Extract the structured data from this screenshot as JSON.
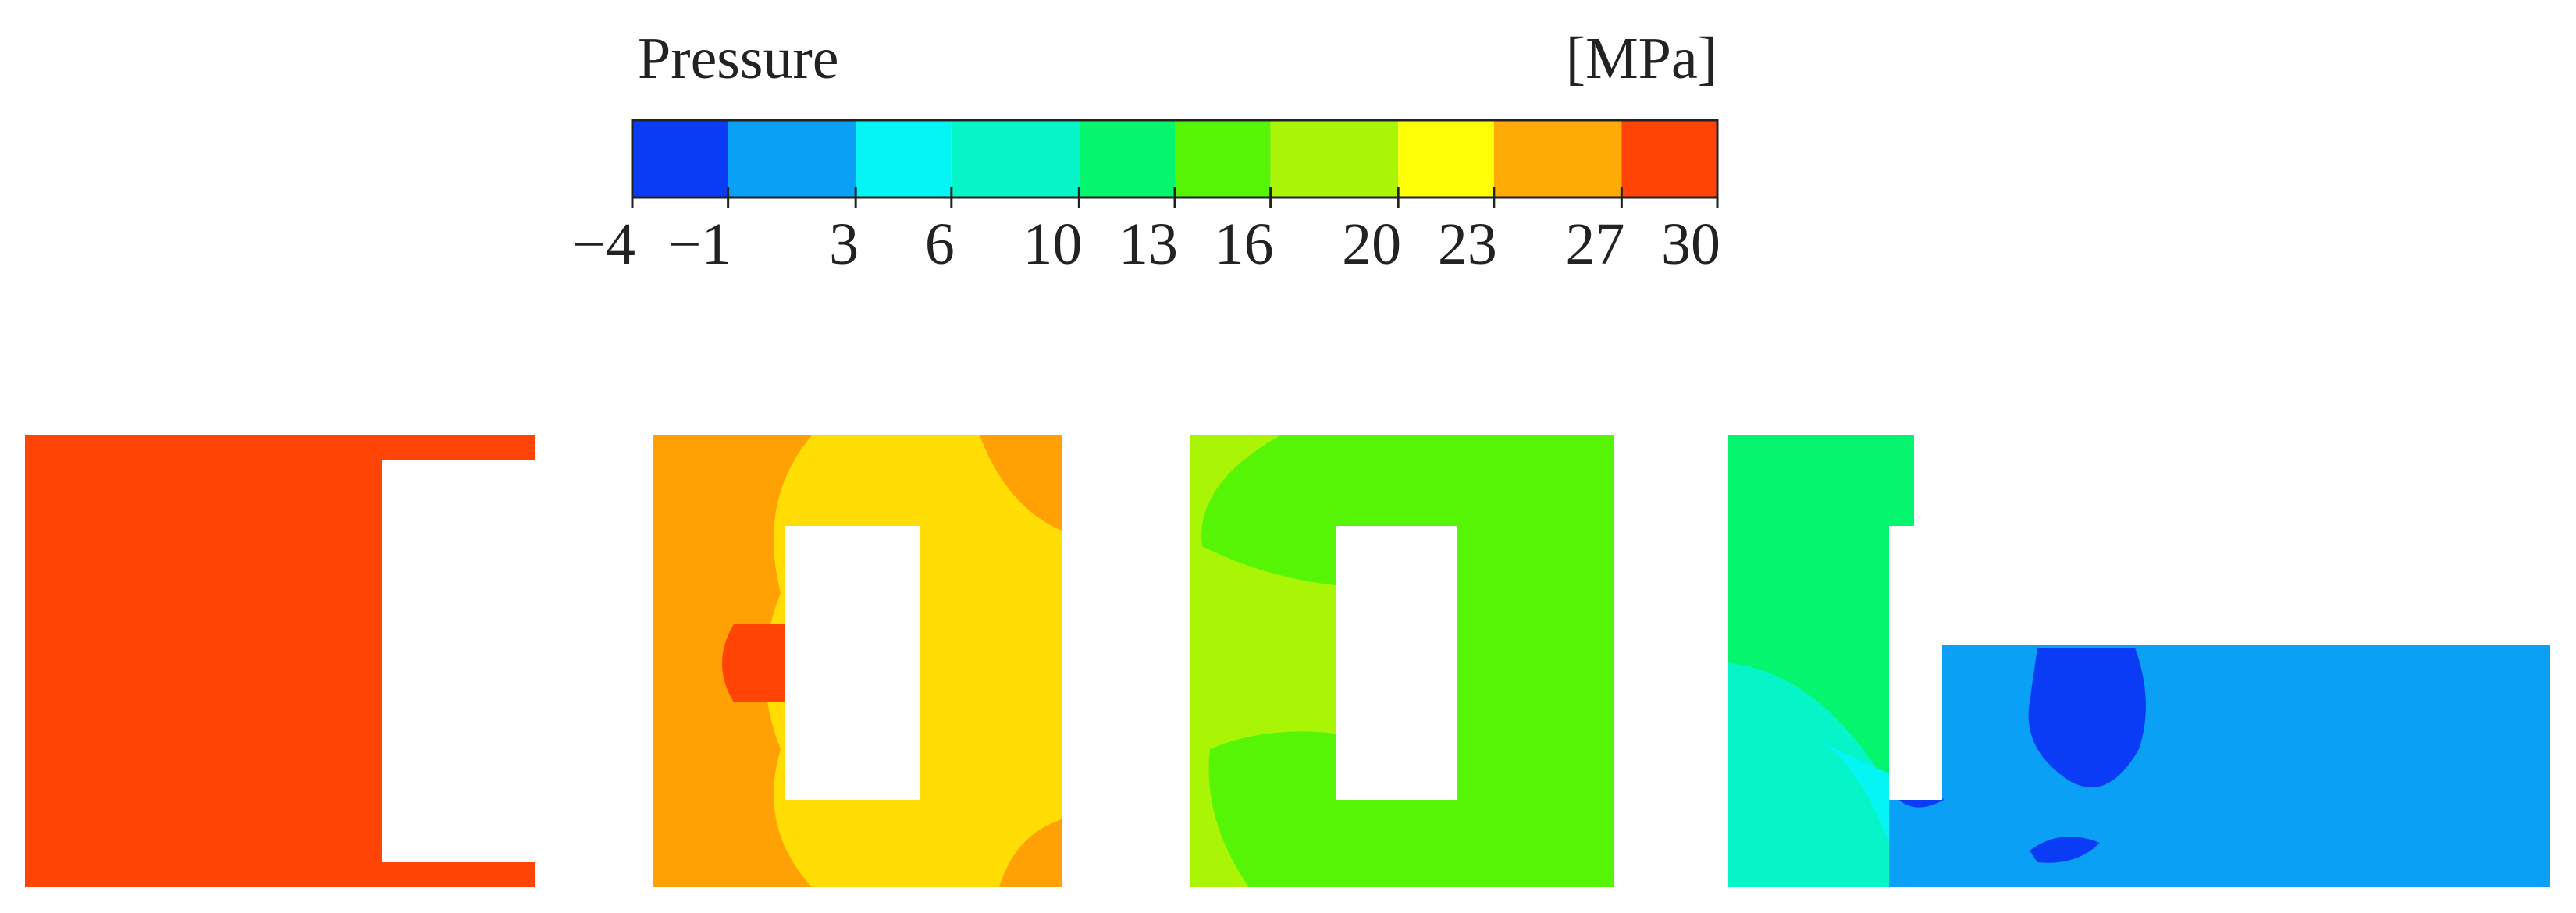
{
  "colorbar": {
    "title": "Pressure",
    "unit": "[MPa]",
    "ticks": [
      {
        "value": -4,
        "label": "−4"
      },
      {
        "value": -1,
        "label": "−1"
      },
      3,
      6,
      10,
      13,
      16,
      20,
      23,
      27,
      30
    ],
    "colors": [
      "#0a3cf5",
      "#0aa0f5",
      "#05f5f5",
      "#05f5c8",
      "#05f56e",
      "#55f505",
      "#aaf505",
      "#ffff05",
      "#ffaa05",
      "#ff4405"
    ]
  }
}
